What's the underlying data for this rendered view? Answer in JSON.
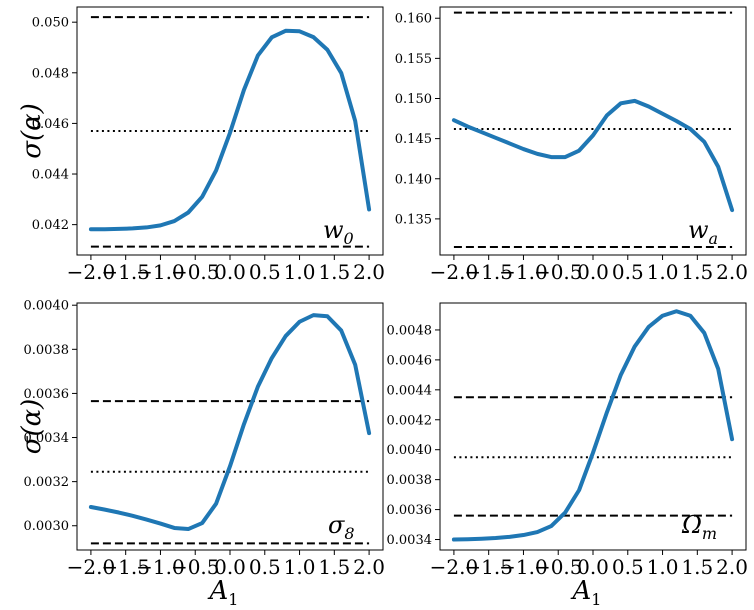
{
  "chart_data": [
    {
      "type": "line",
      "panel": "top-left",
      "annotation": {
        "base": "w",
        "sub": "0"
      },
      "ylabel": "σ(α)",
      "xlabel": "",
      "xlim": [
        -2.2,
        2.2
      ],
      "ylim": [
        0.0408,
        0.0506
      ],
      "xticks": [
        -2.0,
        -1.5,
        -1.0,
        -0.5,
        0.0,
        0.5,
        1.0,
        1.5,
        2.0
      ],
      "xtick_labels": [
        "−2.0",
        "−1.5",
        "−1.0",
        "−0.5",
        "0.0",
        "0.5",
        "1.0",
        "1.5",
        "2.0"
      ],
      "yticks": [
        0.042,
        0.044,
        0.046,
        0.048,
        0.05
      ],
      "ytick_labels": [
        "0.042",
        "0.044",
        "0.046",
        "0.048",
        "0.050"
      ],
      "series": [
        {
          "x": [
            -2.0,
            -1.8,
            -1.6,
            -1.4,
            -1.2,
            -1.0,
            -0.8,
            -0.6,
            -0.4,
            -0.2,
            0.0,
            0.2,
            0.4,
            0.6,
            0.8,
            1.0,
            1.2,
            1.4,
            1.6,
            1.8,
            2.0
          ],
          "y": [
            0.04182,
            0.04182,
            0.04183,
            0.04185,
            0.04189,
            0.04197,
            0.04214,
            0.04248,
            0.0431,
            0.04414,
            0.04563,
            0.04732,
            0.04868,
            0.0494,
            0.04966,
            0.04964,
            0.04941,
            0.04891,
            0.04799,
            0.0461,
            0.0426
          ]
        }
      ],
      "hlines": [
        {
          "y": 0.0502,
          "style": "dashed"
        },
        {
          "y": 0.0457,
          "style": "dotted"
        },
        {
          "y": 0.04113,
          "style": "dashed"
        }
      ],
      "colors": {
        "line": "#1f77b4",
        "ref": "#000000"
      }
    },
    {
      "type": "line",
      "panel": "top-right",
      "annotation": {
        "base": "w",
        "sub": "a"
      },
      "ylabel": "",
      "xlabel": "",
      "xlim": [
        -2.2,
        2.2
      ],
      "ylim": [
        0.1305,
        0.1614
      ],
      "xticks": [
        -2.0,
        -1.5,
        -1.0,
        -0.5,
        0.0,
        0.5,
        1.0,
        1.5,
        2.0
      ],
      "xtick_labels": [
        "−2.0",
        "−1.5",
        "−1.0",
        "−0.5",
        "0.0",
        "0.5",
        "1.0",
        "1.5",
        "2.0"
      ],
      "yticks": [
        0.135,
        0.14,
        0.145,
        0.15,
        0.155,
        0.16
      ],
      "ytick_labels": [
        "0.135",
        "0.140",
        "0.145",
        "0.150",
        "0.155",
        "0.160"
      ],
      "series": [
        {
          "x": [
            -2.0,
            -1.8,
            -1.6,
            -1.4,
            -1.2,
            -1.0,
            -0.8,
            -0.6,
            -0.4,
            -0.2,
            0.0,
            0.2,
            0.4,
            0.6,
            0.8,
            1.0,
            1.2,
            1.4,
            1.6,
            1.8,
            2.0
          ],
          "y": [
            0.1473,
            0.1465,
            0.1458,
            0.1451,
            0.1444,
            0.1437,
            0.1431,
            0.1427,
            0.1427,
            0.1435,
            0.1454,
            0.1479,
            0.1494,
            0.1497,
            0.149,
            0.1481,
            0.1472,
            0.1462,
            0.1446,
            0.1415,
            0.1361
          ]
        }
      ],
      "hlines": [
        {
          "y": 0.1607,
          "style": "dashed"
        },
        {
          "y": 0.1462,
          "style": "dotted"
        },
        {
          "y": 0.1315,
          "style": "dashed"
        }
      ],
      "colors": {
        "line": "#1f77b4",
        "ref": "#000000"
      }
    },
    {
      "type": "line",
      "panel": "bottom-left",
      "annotation": {
        "base": "σ",
        "sub": "8"
      },
      "ylabel": "σ(α)",
      "xlabel": "A",
      "xlabel_sub": "1",
      "xlim": [
        -2.2,
        2.2
      ],
      "ylim": [
        0.00289,
        0.00401
      ],
      "xticks": [
        -2.0,
        -1.5,
        -1.0,
        -0.5,
        0.0,
        0.5,
        1.0,
        1.5,
        2.0
      ],
      "xtick_labels": [
        "−2.0",
        "−1.5",
        "−1.0",
        "−0.5",
        "0.0",
        "0.5",
        "1.0",
        "1.5",
        "2.0"
      ],
      "yticks": [
        0.003,
        0.0032,
        0.0034,
        0.0036,
        0.0038,
        0.004
      ],
      "ytick_labels": [
        "0.0030",
        "0.0032",
        "0.0034",
        "0.0036",
        "0.0038",
        "0.0040"
      ],
      "series": [
        {
          "x": [
            -2.0,
            -1.8,
            -1.6,
            -1.4,
            -1.2,
            -1.0,
            -0.8,
            -0.6,
            -0.4,
            -0.2,
            0.0,
            0.2,
            0.4,
            0.6,
            0.8,
            1.0,
            1.2,
            1.4,
            1.6,
            1.8,
            2.0
          ],
          "y": [
            0.003085,
            0.003073,
            0.00306,
            0.003045,
            0.003028,
            0.00301,
            0.00299,
            0.002985,
            0.003012,
            0.0031,
            0.00327,
            0.00346,
            0.00363,
            0.00376,
            0.00386,
            0.003925,
            0.003955,
            0.00395,
            0.003885,
            0.00373,
            0.00342
          ]
        }
      ],
      "hlines": [
        {
          "y": 0.003565,
          "style": "dashed"
        },
        {
          "y": 0.003245,
          "style": "dotted"
        },
        {
          "y": 0.00292,
          "style": "dashed"
        }
      ],
      "colors": {
        "line": "#1f77b4",
        "ref": "#000000"
      }
    },
    {
      "type": "line",
      "panel": "bottom-right",
      "annotation": {
        "base": "Ω",
        "sub": "m"
      },
      "ylabel": "",
      "xlabel": "A",
      "xlabel_sub": "1",
      "xlim": [
        -2.2,
        2.2
      ],
      "ylim": [
        0.00333,
        0.00498
      ],
      "xticks": [
        -2.0,
        -1.5,
        -1.0,
        -0.5,
        0.0,
        0.5,
        1.0,
        1.5,
        2.0
      ],
      "xtick_labels": [
        "−2.0",
        "−1.5",
        "−1.0",
        "−0.5",
        "0.0",
        "0.5",
        "1.0",
        "1.5",
        "2.0"
      ],
      "yticks": [
        0.0034,
        0.0036,
        0.0038,
        0.004,
        0.0042,
        0.0044,
        0.0046,
        0.0048
      ],
      "ytick_labels": [
        "0.0034",
        "0.0036",
        "0.0038",
        "0.0040",
        "0.0042",
        "0.0044",
        "0.0046",
        "0.0048"
      ],
      "series": [
        {
          "x": [
            -2.0,
            -1.8,
            -1.6,
            -1.4,
            -1.2,
            -1.0,
            -0.8,
            -0.6,
            -0.4,
            -0.2,
            0.0,
            0.2,
            0.4,
            0.6,
            0.8,
            1.0,
            1.2,
            1.4,
            1.6,
            1.8,
            2.0
          ],
          "y": [
            0.0034,
            0.003402,
            0.003405,
            0.00341,
            0.003418,
            0.00343,
            0.00345,
            0.00349,
            0.00358,
            0.00373,
            0.00398,
            0.00425,
            0.0045,
            0.00469,
            0.00482,
            0.004895,
            0.004925,
            0.004895,
            0.00478,
            0.00454,
            0.00407
          ]
        }
      ],
      "hlines": [
        {
          "y": 0.00435,
          "style": "dashed"
        },
        {
          "y": 0.00395,
          "style": "dotted"
        },
        {
          "y": 0.00356,
          "style": "dashed"
        }
      ],
      "colors": {
        "line": "#1f77b4",
        "ref": "#000000"
      }
    }
  ]
}
